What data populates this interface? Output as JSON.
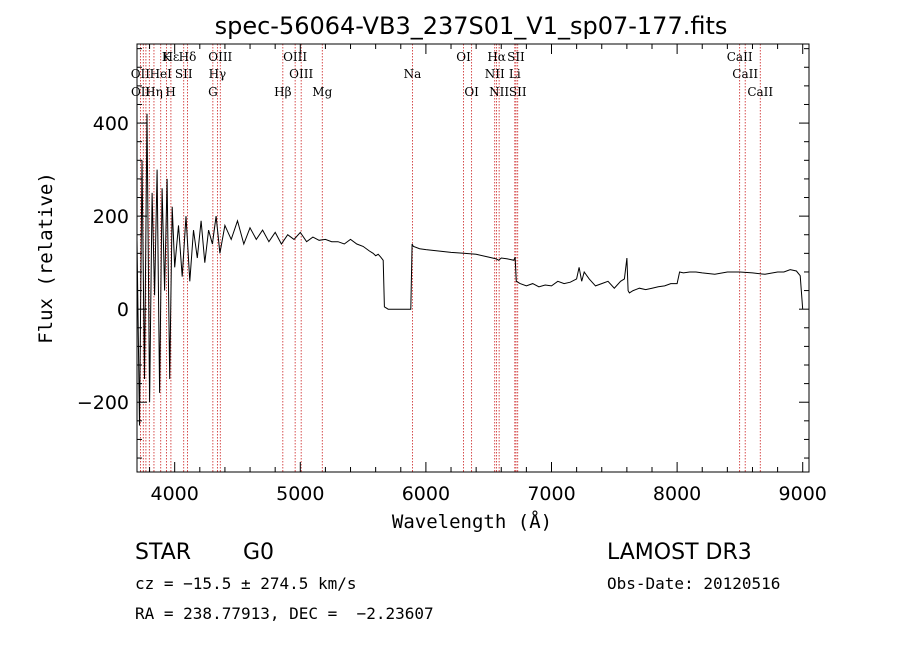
{
  "chart_data": {
    "type": "line",
    "title": "spec-56064-VB3_237S01_V1_sp07-177.fits",
    "xlabel": "Wavelength (Å)",
    "ylabel": "Flux (relative)",
    "xlim": [
      3700,
      9050
    ],
    "ylim": [
      -350,
      570
    ],
    "xticks": [
      4000,
      5000,
      6000,
      7000,
      8000,
      9000
    ],
    "yticks": [
      -200,
      0,
      200,
      400
    ],
    "series": [
      {
        "name": "flux",
        "x": [
          3700,
          3720,
          3740,
          3760,
          3780,
          3800,
          3820,
          3840,
          3860,
          3880,
          3900,
          3920,
          3940,
          3960,
          3980,
          4000,
          4030,
          4060,
          4090,
          4120,
          4150,
          4180,
          4210,
          4240,
          4270,
          4300,
          4330,
          4360,
          4400,
          4450,
          4500,
          4550,
          4600,
          4650,
          4700,
          4750,
          4800,
          4850,
          4900,
          4950,
          5000,
          5050,
          5100,
          5150,
          5200,
          5250,
          5300,
          5350,
          5400,
          5450,
          5500,
          5550,
          5580,
          5600,
          5620,
          5640,
          5660,
          5670,
          5700,
          5750,
          5800,
          5850,
          5880,
          5890,
          5900,
          5950,
          6000,
          6100,
          6200,
          6300,
          6400,
          6500,
          6560,
          6580,
          6600,
          6650,
          6700,
          6710,
          6720,
          6750,
          6800,
          6850,
          6900,
          6950,
          7000,
          7050,
          7100,
          7150,
          7200,
          7220,
          7240,
          7260,
          7300,
          7350,
          7400,
          7450,
          7500,
          7550,
          7580,
          7600,
          7610,
          7620,
          7650,
          7700,
          7750,
          7800,
          7850,
          7900,
          7950,
          8000,
          8020,
          8050,
          8100,
          8150,
          8200,
          8300,
          8400,
          8500,
          8600,
          8700,
          8800,
          8850,
          8900,
          8950,
          8980,
          9000
        ],
        "y": [
          150,
          -250,
          320,
          -150,
          420,
          -200,
          250,
          30,
          300,
          -180,
          260,
          40,
          280,
          -150,
          220,
          90,
          180,
          70,
          200,
          60,
          170,
          110,
          190,
          100,
          170,
          140,
          200,
          120,
          180,
          150,
          190,
          140,
          175,
          150,
          170,
          145,
          165,
          140,
          160,
          150,
          165,
          145,
          155,
          148,
          150,
          145,
          145,
          140,
          150,
          140,
          135,
          125,
          120,
          115,
          118,
          112,
          105,
          5,
          0,
          0,
          0,
          0,
          0,
          140,
          135,
          130,
          128,
          125,
          122,
          120,
          118,
          112,
          108,
          105,
          110,
          108,
          105,
          112,
          60,
          55,
          50,
          55,
          48,
          52,
          50,
          60,
          55,
          58,
          65,
          90,
          60,
          80,
          65,
          50,
          55,
          60,
          45,
          60,
          65,
          110,
          40,
          35,
          40,
          45,
          42,
          45,
          48,
          50,
          55,
          55,
          80,
          78,
          80,
          80,
          78,
          75,
          80,
          80,
          78,
          75,
          80,
          80,
          85,
          82,
          72,
          0
        ]
      }
    ],
    "line_labels": [
      {
        "name": "Hε",
        "wave": 3970,
        "row": 1
      },
      {
        "name": "K",
        "wave": 3934,
        "row": 1
      },
      {
        "name": "Hδ",
        "wave": 4102,
        "row": 1
      },
      {
        "name": "OIII",
        "wave": 4363,
        "row": 1
      },
      {
        "name": "OIII",
        "wave": 4959,
        "row": 1
      },
      {
        "name": "OI",
        "wave": 6300,
        "row": 1
      },
      {
        "name": "Hα",
        "wave": 6563,
        "row": 1
      },
      {
        "name": "SII",
        "wave": 6717,
        "row": 1
      },
      {
        "name": "CaII",
        "wave": 8498,
        "row": 1
      },
      {
        "name": "OII",
        "wave": 3727,
        "row": 2
      },
      {
        "name": "HeI",
        "wave": 3889,
        "row": 2
      },
      {
        "name": "SII",
        "wave": 4072,
        "row": 2
      },
      {
        "name": "Hγ",
        "wave": 4340,
        "row": 2
      },
      {
        "name": "OIII",
        "wave": 5007,
        "row": 2
      },
      {
        "name": "Na",
        "wave": 5893,
        "row": 2
      },
      {
        "name": "NII",
        "wave": 6548,
        "row": 2
      },
      {
        "name": "Li",
        "wave": 6708,
        "row": 2
      },
      {
        "name": "CaII",
        "wave": 8542,
        "row": 2
      },
      {
        "name": "OII",
        "wave": 3729,
        "row": 3
      },
      {
        "name": "Hη",
        "wave": 3835,
        "row": 3
      },
      {
        "name": "H",
        "wave": 3968,
        "row": 3
      },
      {
        "name": "G",
        "wave": 4304,
        "row": 3
      },
      {
        "name": "Hβ",
        "wave": 4861,
        "row": 3
      },
      {
        "name": "Mg",
        "wave": 5175,
        "row": 3
      },
      {
        "name": "OI",
        "wave": 6364,
        "row": 3
      },
      {
        "name": "NII",
        "wave": 6583,
        "row": 3
      },
      {
        "name": "SII",
        "wave": 6731,
        "row": 3
      },
      {
        "name": "CaII",
        "wave": 8662,
        "row": 3
      }
    ],
    "line_waves": [
      3727,
      3750,
      3771,
      3798,
      3835,
      3889,
      3934,
      3970,
      4072,
      4102,
      4304,
      4340,
      4363,
      4861,
      4959,
      5007,
      5175,
      5893,
      6300,
      6364,
      6548,
      6563,
      6583,
      6708,
      6717,
      6731,
      8498,
      8542,
      8662
    ],
    "line_color": "#cc2222"
  },
  "info": {
    "class_label": "STAR",
    "subclass": "G0",
    "survey": "LAMOST DR3",
    "redshift": "cz = −15.5 ± 274.5 km/s",
    "obs_date": "Obs-Date: 20120516",
    "coords": "RA = 238.77913, DEC =  −2.23607"
  }
}
